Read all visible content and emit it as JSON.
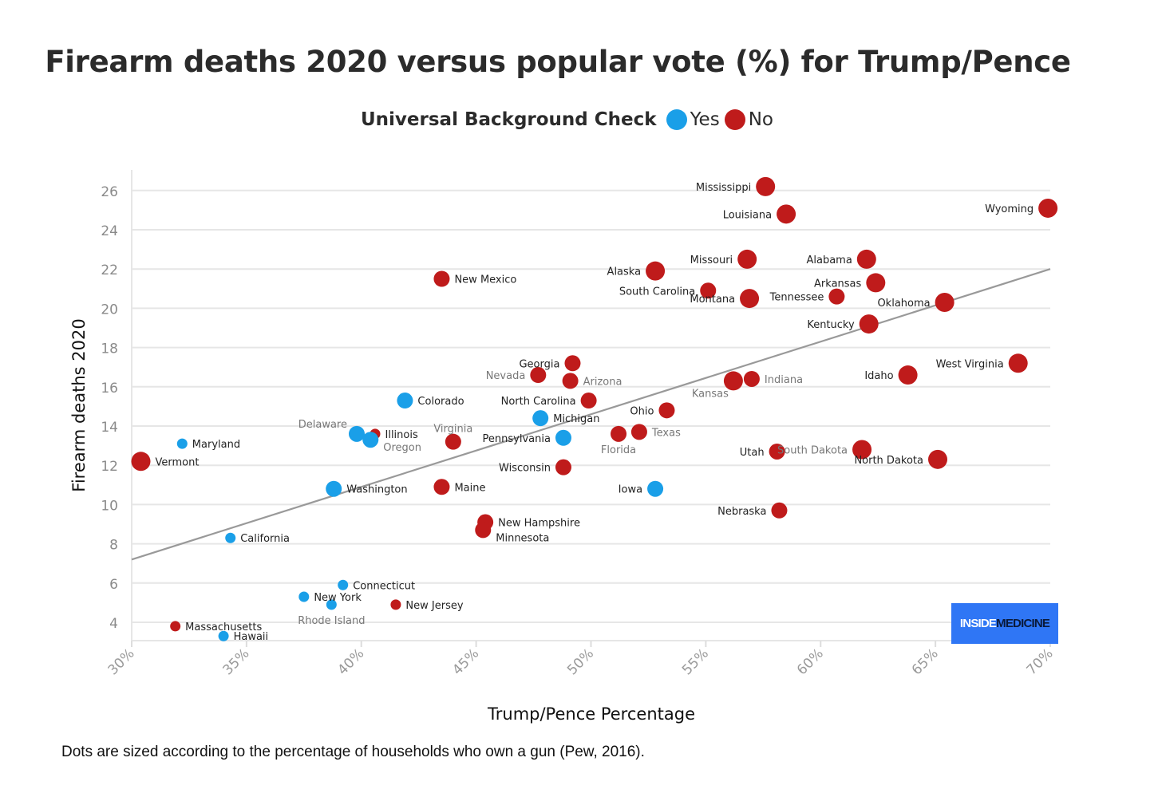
{
  "chart_data": {
    "type": "scatter",
    "title": "Firearm deaths 2020 versus popular vote (%) for Trump/Pence",
    "legend": {
      "title": "Universal Background Check",
      "items": [
        {
          "label": "Yes",
          "color": "#1a9fe8"
        },
        {
          "label": "No",
          "color": "#bf1b1b"
        }
      ]
    },
    "xlabel": "Trump/Pence Percentage",
    "ylabel": "Firearm deaths 2020",
    "xlim": [
      30,
      70
    ],
    "ylim": [
      3,
      27
    ],
    "xticks": [
      "30%",
      "35%",
      "40%",
      "45%",
      "50%",
      "55%",
      "60%",
      "65%",
      "70%"
    ],
    "yticks": [
      "4",
      "6",
      "8",
      "10",
      "12",
      "14",
      "16",
      "18",
      "20",
      "22",
      "24",
      "26"
    ],
    "trendline": {
      "x": [
        30,
        70
      ],
      "y": [
        7.2,
        22.0
      ]
    },
    "points": [
      {
        "label": "Mississippi",
        "x": 57.6,
        "y": 26.2,
        "ubc": "No",
        "size": 2
      },
      {
        "label": "Wyoming",
        "x": 69.9,
        "y": 25.1,
        "ubc": "No",
        "size": 2
      },
      {
        "label": "Louisiana",
        "x": 58.5,
        "y": 24.8,
        "ubc": "No",
        "size": 2
      },
      {
        "label": "Missouri",
        "x": 56.8,
        "y": 22.5,
        "ubc": "No",
        "size": 2
      },
      {
        "label": "Alabama",
        "x": 62.0,
        "y": 22.5,
        "ubc": "No",
        "size": 2
      },
      {
        "label": "Alaska",
        "x": 52.8,
        "y": 21.9,
        "ubc": "No",
        "size": 2
      },
      {
        "label": "New Mexico",
        "x": 43.5,
        "y": 21.5,
        "ubc": "No",
        "size": 1
      },
      {
        "label": "Arkansas",
        "x": 62.4,
        "y": 21.3,
        "ubc": "No",
        "size": 2
      },
      {
        "label": "South Carolina",
        "x": 55.1,
        "y": 20.9,
        "ubc": "No",
        "size": 1
      },
      {
        "label": "Montana",
        "x": 56.9,
        "y": 20.5,
        "ubc": "No",
        "size": 2
      },
      {
        "label": "Tennessee",
        "x": 60.7,
        "y": 20.6,
        "ubc": "No",
        "size": 1
      },
      {
        "label": "Oklahoma",
        "x": 65.4,
        "y": 20.3,
        "ubc": "No",
        "size": 2
      },
      {
        "label": "Kentucky",
        "x": 62.1,
        "y": 19.2,
        "ubc": "No",
        "size": 2
      },
      {
        "label": "Georgia",
        "x": 49.2,
        "y": 17.2,
        "ubc": "No",
        "size": 1
      },
      {
        "label": "West Virginia",
        "x": 68.6,
        "y": 17.2,
        "ubc": "No",
        "size": 2
      },
      {
        "label": "Nevada",
        "x": 47.7,
        "y": 16.6,
        "ubc": "No",
        "size": 1
      },
      {
        "label": "Idaho",
        "x": 63.8,
        "y": 16.6,
        "ubc": "No",
        "size": 2
      },
      {
        "label": "Arizona",
        "x": 49.1,
        "y": 16.3,
        "ubc": "No",
        "size": 1
      },
      {
        "label": "Kansas",
        "x": 56.2,
        "y": 16.3,
        "ubc": "No",
        "size": 2
      },
      {
        "label": "Indiana",
        "x": 57.0,
        "y": 16.4,
        "ubc": "No",
        "size": 1
      },
      {
        "label": "Colorado",
        "x": 41.9,
        "y": 15.3,
        "ubc": "Yes",
        "size": 1
      },
      {
        "label": "North Carolina",
        "x": 49.9,
        "y": 15.3,
        "ubc": "No",
        "size": 1
      },
      {
        "label": "Ohio",
        "x": 53.3,
        "y": 14.8,
        "ubc": "No",
        "size": 1
      },
      {
        "label": "Michigan",
        "x": 47.8,
        "y": 14.4,
        "ubc": "Yes",
        "size": 1
      },
      {
        "label": "Delaware",
        "x": 39.8,
        "y": 13.6,
        "ubc": "Yes",
        "size": 1
      },
      {
        "label": "Illinois",
        "x": 40.6,
        "y": 13.6,
        "ubc": "No",
        "size": 0
      },
      {
        "label": "Virginia",
        "x": 44.0,
        "y": 13.2,
        "ubc": "No",
        "size": 1
      },
      {
        "label": "Oregon",
        "x": 40.4,
        "y": 13.3,
        "ubc": "Yes",
        "size": 1
      },
      {
        "label": "Pennsylvania",
        "x": 48.8,
        "y": 13.4,
        "ubc": "Yes",
        "size": 1
      },
      {
        "label": "Florida",
        "x": 51.2,
        "y": 13.6,
        "ubc": "No",
        "size": 1
      },
      {
        "label": "Texas",
        "x": 52.1,
        "y": 13.7,
        "ubc": "No",
        "size": 1
      },
      {
        "label": "Maryland",
        "x": 32.2,
        "y": 13.1,
        "ubc": "Yes",
        "size": 0
      },
      {
        "label": "Vermont",
        "x": 30.4,
        "y": 12.2,
        "ubc": "No",
        "size": 2
      },
      {
        "label": "Utah",
        "x": 58.1,
        "y": 12.7,
        "ubc": "No",
        "size": 1
      },
      {
        "label": "South Dakota",
        "x": 61.8,
        "y": 12.8,
        "ubc": "No",
        "size": 2
      },
      {
        "label": "North Dakota",
        "x": 65.1,
        "y": 12.3,
        "ubc": "No",
        "size": 2
      },
      {
        "label": "Wisconsin",
        "x": 48.8,
        "y": 11.9,
        "ubc": "No",
        "size": 1
      },
      {
        "label": "Maine",
        "x": 43.5,
        "y": 10.9,
        "ubc": "No",
        "size": 1
      },
      {
        "label": "Washington",
        "x": 38.8,
        "y": 10.8,
        "ubc": "Yes",
        "size": 1
      },
      {
        "label": "Iowa",
        "x": 52.8,
        "y": 10.8,
        "ubc": "Yes",
        "size": 1
      },
      {
        "label": "Nebraska",
        "x": 58.2,
        "y": 9.7,
        "ubc": "No",
        "size": 1
      },
      {
        "label": "New Hampshire",
        "x": 45.4,
        "y": 9.1,
        "ubc": "No",
        "size": 1
      },
      {
        "label": "Minnesota",
        "x": 45.3,
        "y": 8.7,
        "ubc": "No",
        "size": 1
      },
      {
        "label": "California",
        "x": 34.3,
        "y": 8.3,
        "ubc": "Yes",
        "size": 0
      },
      {
        "label": "Connecticut",
        "x": 39.2,
        "y": 5.9,
        "ubc": "Yes",
        "size": 0
      },
      {
        "label": "New York",
        "x": 37.5,
        "y": 5.3,
        "ubc": "Yes",
        "size": 0
      },
      {
        "label": "Rhode Island",
        "x": 38.7,
        "y": 4.9,
        "ubc": "Yes",
        "size": 0
      },
      {
        "label": "New Jersey",
        "x": 41.5,
        "y": 4.9,
        "ubc": "No",
        "size": 0
      },
      {
        "label": "Massachusetts",
        "x": 31.9,
        "y": 3.8,
        "ubc": "No",
        "size": 0
      },
      {
        "label": "Hawaii",
        "x": 34.0,
        "y": 3.3,
        "ubc": "Yes",
        "size": 0
      }
    ]
  },
  "logo": {
    "part1": "INSIDE",
    "part2": "MEDICINE"
  },
  "note": "Dots are sized according to the percentage of households who own a gun (Pew, 2016)."
}
